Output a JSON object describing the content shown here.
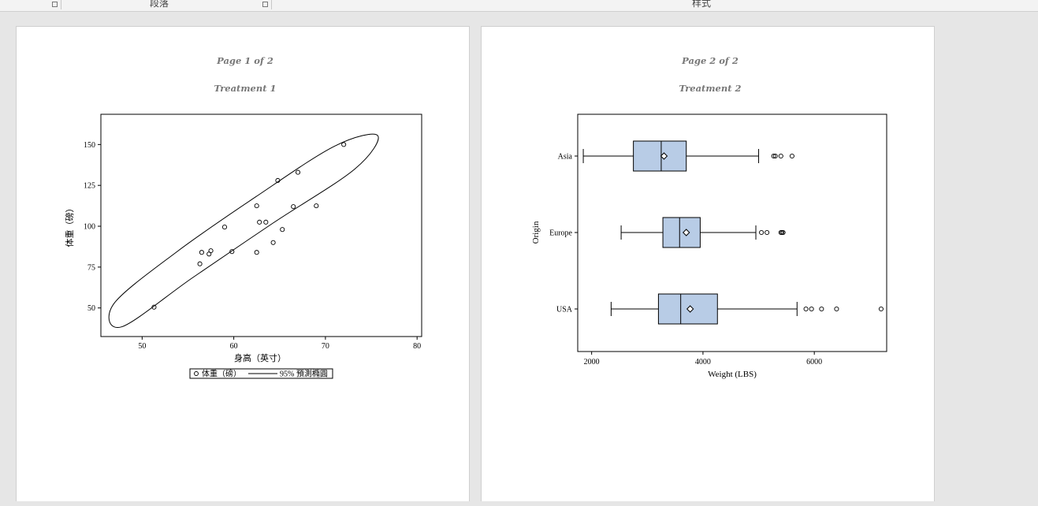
{
  "ribbon": {
    "groups": [
      "段落",
      "样式"
    ]
  },
  "pages": [
    {
      "page_label": "Page 1 of 2",
      "title": "Treatment 1"
    },
    {
      "page_label": "Page 2 of 2",
      "title": "Treatment 2"
    }
  ],
  "chart_data": [
    {
      "type": "scatter",
      "title": "Treatment 1",
      "xlabel": "身高（英寸）",
      "ylabel": "体重（磅）",
      "xlim": [
        45.5,
        80.5
      ],
      "ylim": [
        32.5,
        168.5
      ],
      "xticks": [
        50,
        60,
        70,
        80
      ],
      "yticks": [
        50,
        75,
        100,
        125,
        150
      ],
      "series": [
        {
          "name": "体重（磅）",
          "x": [
            51.3,
            56.3,
            56.5,
            57.3,
            57.5,
            59.0,
            59.8,
            62.5,
            62.5,
            62.8,
            63.5,
            64.3,
            64.8,
            65.3,
            66.5,
            67.0,
            69.0,
            72.0
          ],
          "y": [
            50.5,
            77.0,
            84.0,
            83.0,
            85.0,
            99.5,
            84.5,
            84.0,
            112.5,
            102.5,
            102.5,
            90.0,
            128.0,
            98.0,
            112.0,
            133.0,
            112.5,
            150.0
          ]
        }
      ],
      "ellipse": {
        "name": "95% 預測橢圓",
        "path": [
          [
            46.9,
            52.5
          ],
          [
            53.7,
            84.0
          ],
          [
            62.4,
            118.0
          ],
          [
            71.0,
            149.0
          ],
          [
            75.7,
            155.5
          ],
          [
            73.2,
            135.0
          ],
          [
            64.3,
            102.0
          ],
          [
            55.5,
            68.5
          ],
          [
            47.8,
            38.5
          ]
        ]
      },
      "legend": {
        "placement": "bottom",
        "entries": [
          "体重（磅）",
          "95% 預測橢圓"
        ]
      }
    },
    {
      "type": "box",
      "orientation": "horizontal",
      "title": "Treatment 2",
      "xlabel": "Weight (LBS)",
      "ylabel": "Origin",
      "xlim": [
        1750,
        7300
      ],
      "xticks": [
        2000,
        4000,
        6000
      ],
      "categories": [
        "Asia",
        "Europe",
        "USA"
      ],
      "boxes": [
        {
          "category": "Asia",
          "min": 1850,
          "q1": 2750,
          "median": 3250,
          "q3": 3700,
          "max": 5000,
          "mean": 3300,
          "outliers": [
            5270,
            5300,
            5400,
            5600
          ]
        },
        {
          "category": "Europe",
          "min": 2530,
          "q1": 3280,
          "median": 3580,
          "q3": 3950,
          "max": 4950,
          "mean": 3700,
          "outliers": [
            5050,
            5150,
            5400,
            5420,
            5440
          ]
        },
        {
          "category": "USA",
          "min": 2350,
          "q1": 3200,
          "median": 3600,
          "q3": 4260,
          "max": 5690,
          "mean": 3770,
          "outliers": [
            5850,
            5950,
            6130,
            6400,
            7200
          ]
        }
      ],
      "colors": {
        "box_fill": "#b8cce6"
      }
    }
  ]
}
